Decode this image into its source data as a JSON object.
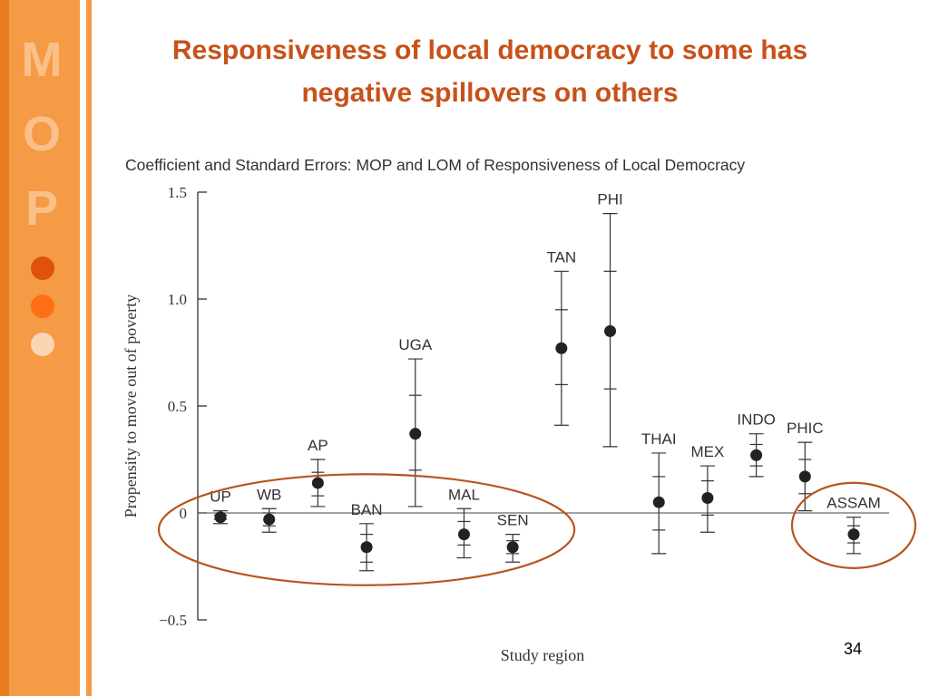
{
  "slide": {
    "title_line1": "Responsiveness of local democracy to some has",
    "title_line2": "negative spillovers on others",
    "sidebar_letters": [
      "M",
      "O",
      "P"
    ],
    "page_number": "34",
    "colors": {
      "title": "#c8511a",
      "sidebar": "#f59a45",
      "sidebar_edge": "#e87d1e",
      "sidebar_letter": "#fbc089",
      "dots": [
        "#e0520c",
        "#fd6f12",
        "#fbd6b4"
      ],
      "highlight_ellipse": "#b8541e"
    }
  },
  "chart_data": {
    "type": "scatter",
    "title": "Coefficient and Standard Errors: MOP and LOM of Responsiveness of Local Democracy",
    "xlabel": "Study region",
    "ylabel": "Propensity to move out of poverty",
    "ylim": [
      -0.5,
      1.5
    ],
    "yticks": [
      -0.5,
      0,
      0.5,
      1.0,
      1.5
    ],
    "ytick_labels": [
      "−0.5",
      "0",
      "0.5",
      "1.0",
      "1.5"
    ],
    "grid": false,
    "zero_line": true,
    "points": [
      {
        "label": "UP",
        "value": -0.02,
        "inner": [
          -0.03,
          -0.01
        ],
        "outer": [
          -0.05,
          0.01
        ]
      },
      {
        "label": "WB",
        "value": -0.03,
        "inner": [
          -0.06,
          0.0
        ],
        "outer": [
          -0.09,
          0.02
        ]
      },
      {
        "label": "AP",
        "value": 0.14,
        "inner": [
          0.08,
          0.19
        ],
        "outer": [
          0.03,
          0.25
        ]
      },
      {
        "label": "BAN",
        "value": -0.16,
        "inner": [
          -0.23,
          -0.1
        ],
        "outer": [
          -0.27,
          -0.05
        ]
      },
      {
        "label": "UGA",
        "value": 0.37,
        "inner": [
          0.2,
          0.55
        ],
        "outer": [
          0.03,
          0.72
        ]
      },
      {
        "label": "MAL",
        "value": -0.1,
        "inner": [
          -0.15,
          -0.04
        ],
        "outer": [
          -0.21,
          0.02
        ]
      },
      {
        "label": "SEN",
        "value": -0.16,
        "inner": [
          -0.19,
          -0.13
        ],
        "outer": [
          -0.23,
          -0.1
        ]
      },
      {
        "label": "TAN",
        "value": 0.77,
        "inner": [
          0.6,
          0.95
        ],
        "outer": [
          0.41,
          1.13
        ]
      },
      {
        "label": "PHI",
        "value": 0.85,
        "inner": [
          0.58,
          1.13
        ],
        "outer": [
          0.31,
          1.4
        ]
      },
      {
        "label": "THAI",
        "value": 0.05,
        "inner": [
          -0.08,
          0.17
        ],
        "outer": [
          -0.19,
          0.28
        ]
      },
      {
        "label": "MEX",
        "value": 0.07,
        "inner": [
          -0.01,
          0.15
        ],
        "outer": [
          -0.09,
          0.22
        ]
      },
      {
        "label": "INDO",
        "value": 0.27,
        "inner": [
          0.22,
          0.32
        ],
        "outer": [
          0.17,
          0.37
        ]
      },
      {
        "label": "PHIC",
        "value": 0.17,
        "inner": [
          0.09,
          0.25
        ],
        "outer": [
          0.01,
          0.33
        ]
      },
      {
        "label": "ASSAM",
        "value": -0.1,
        "inner": [
          -0.14,
          -0.06
        ],
        "outer": [
          -0.19,
          -0.02
        ]
      }
    ],
    "highlighted_groups": [
      [
        "UP",
        "WB",
        "BAN",
        "MAL",
        "SEN"
      ],
      [
        "ASSAM"
      ]
    ]
  }
}
